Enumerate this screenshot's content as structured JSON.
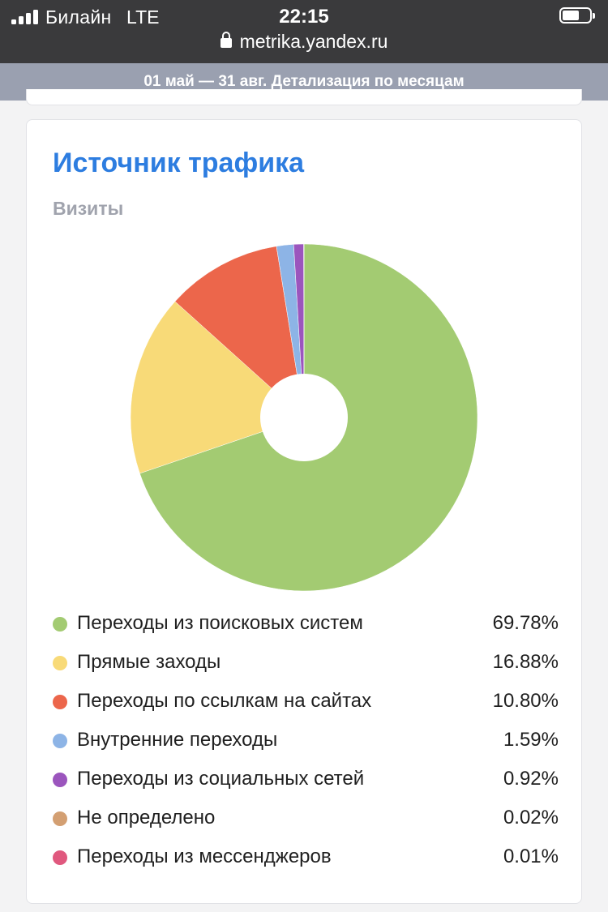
{
  "status_bar": {
    "carrier": "Билайн",
    "network": "LTE",
    "time": "22:15",
    "url": "metrika.yandex.ru"
  },
  "period_bar": {
    "text": "01 май — 31 авг. Детализация по месяцам"
  },
  "card": {
    "title": "Источник трафика",
    "subtitle": "Визиты"
  },
  "chart_data": {
    "type": "pie",
    "title": "Источник трафика",
    "subtitle": "Визиты",
    "series": [
      {
        "name": "Переходы из поисковых систем",
        "value": 69.78,
        "label": "69.78%",
        "color": "#a3cb72"
      },
      {
        "name": "Прямые заходы",
        "value": 16.88,
        "label": "16.88%",
        "color": "#f8da78"
      },
      {
        "name": "Переходы по ссылкам на сайтах",
        "value": 10.8,
        "label": "10.80%",
        "color": "#ec664b"
      },
      {
        "name": "Внутренние переходы",
        "value": 1.59,
        "label": "1.59%",
        "color": "#8db4e6"
      },
      {
        "name": "Переходы из социальных сетей",
        "value": 0.92,
        "label": "0.92%",
        "color": "#9b55bd"
      },
      {
        "name": "Не определено",
        "value": 0.02,
        "label": "0.02%",
        "color": "#d39f72"
      },
      {
        "name": "Переходы из мессенджеров",
        "value": 0.01,
        "label": "0.01%",
        "color": "#e0587e"
      }
    ],
    "legend": "bottom",
    "donut": true
  }
}
